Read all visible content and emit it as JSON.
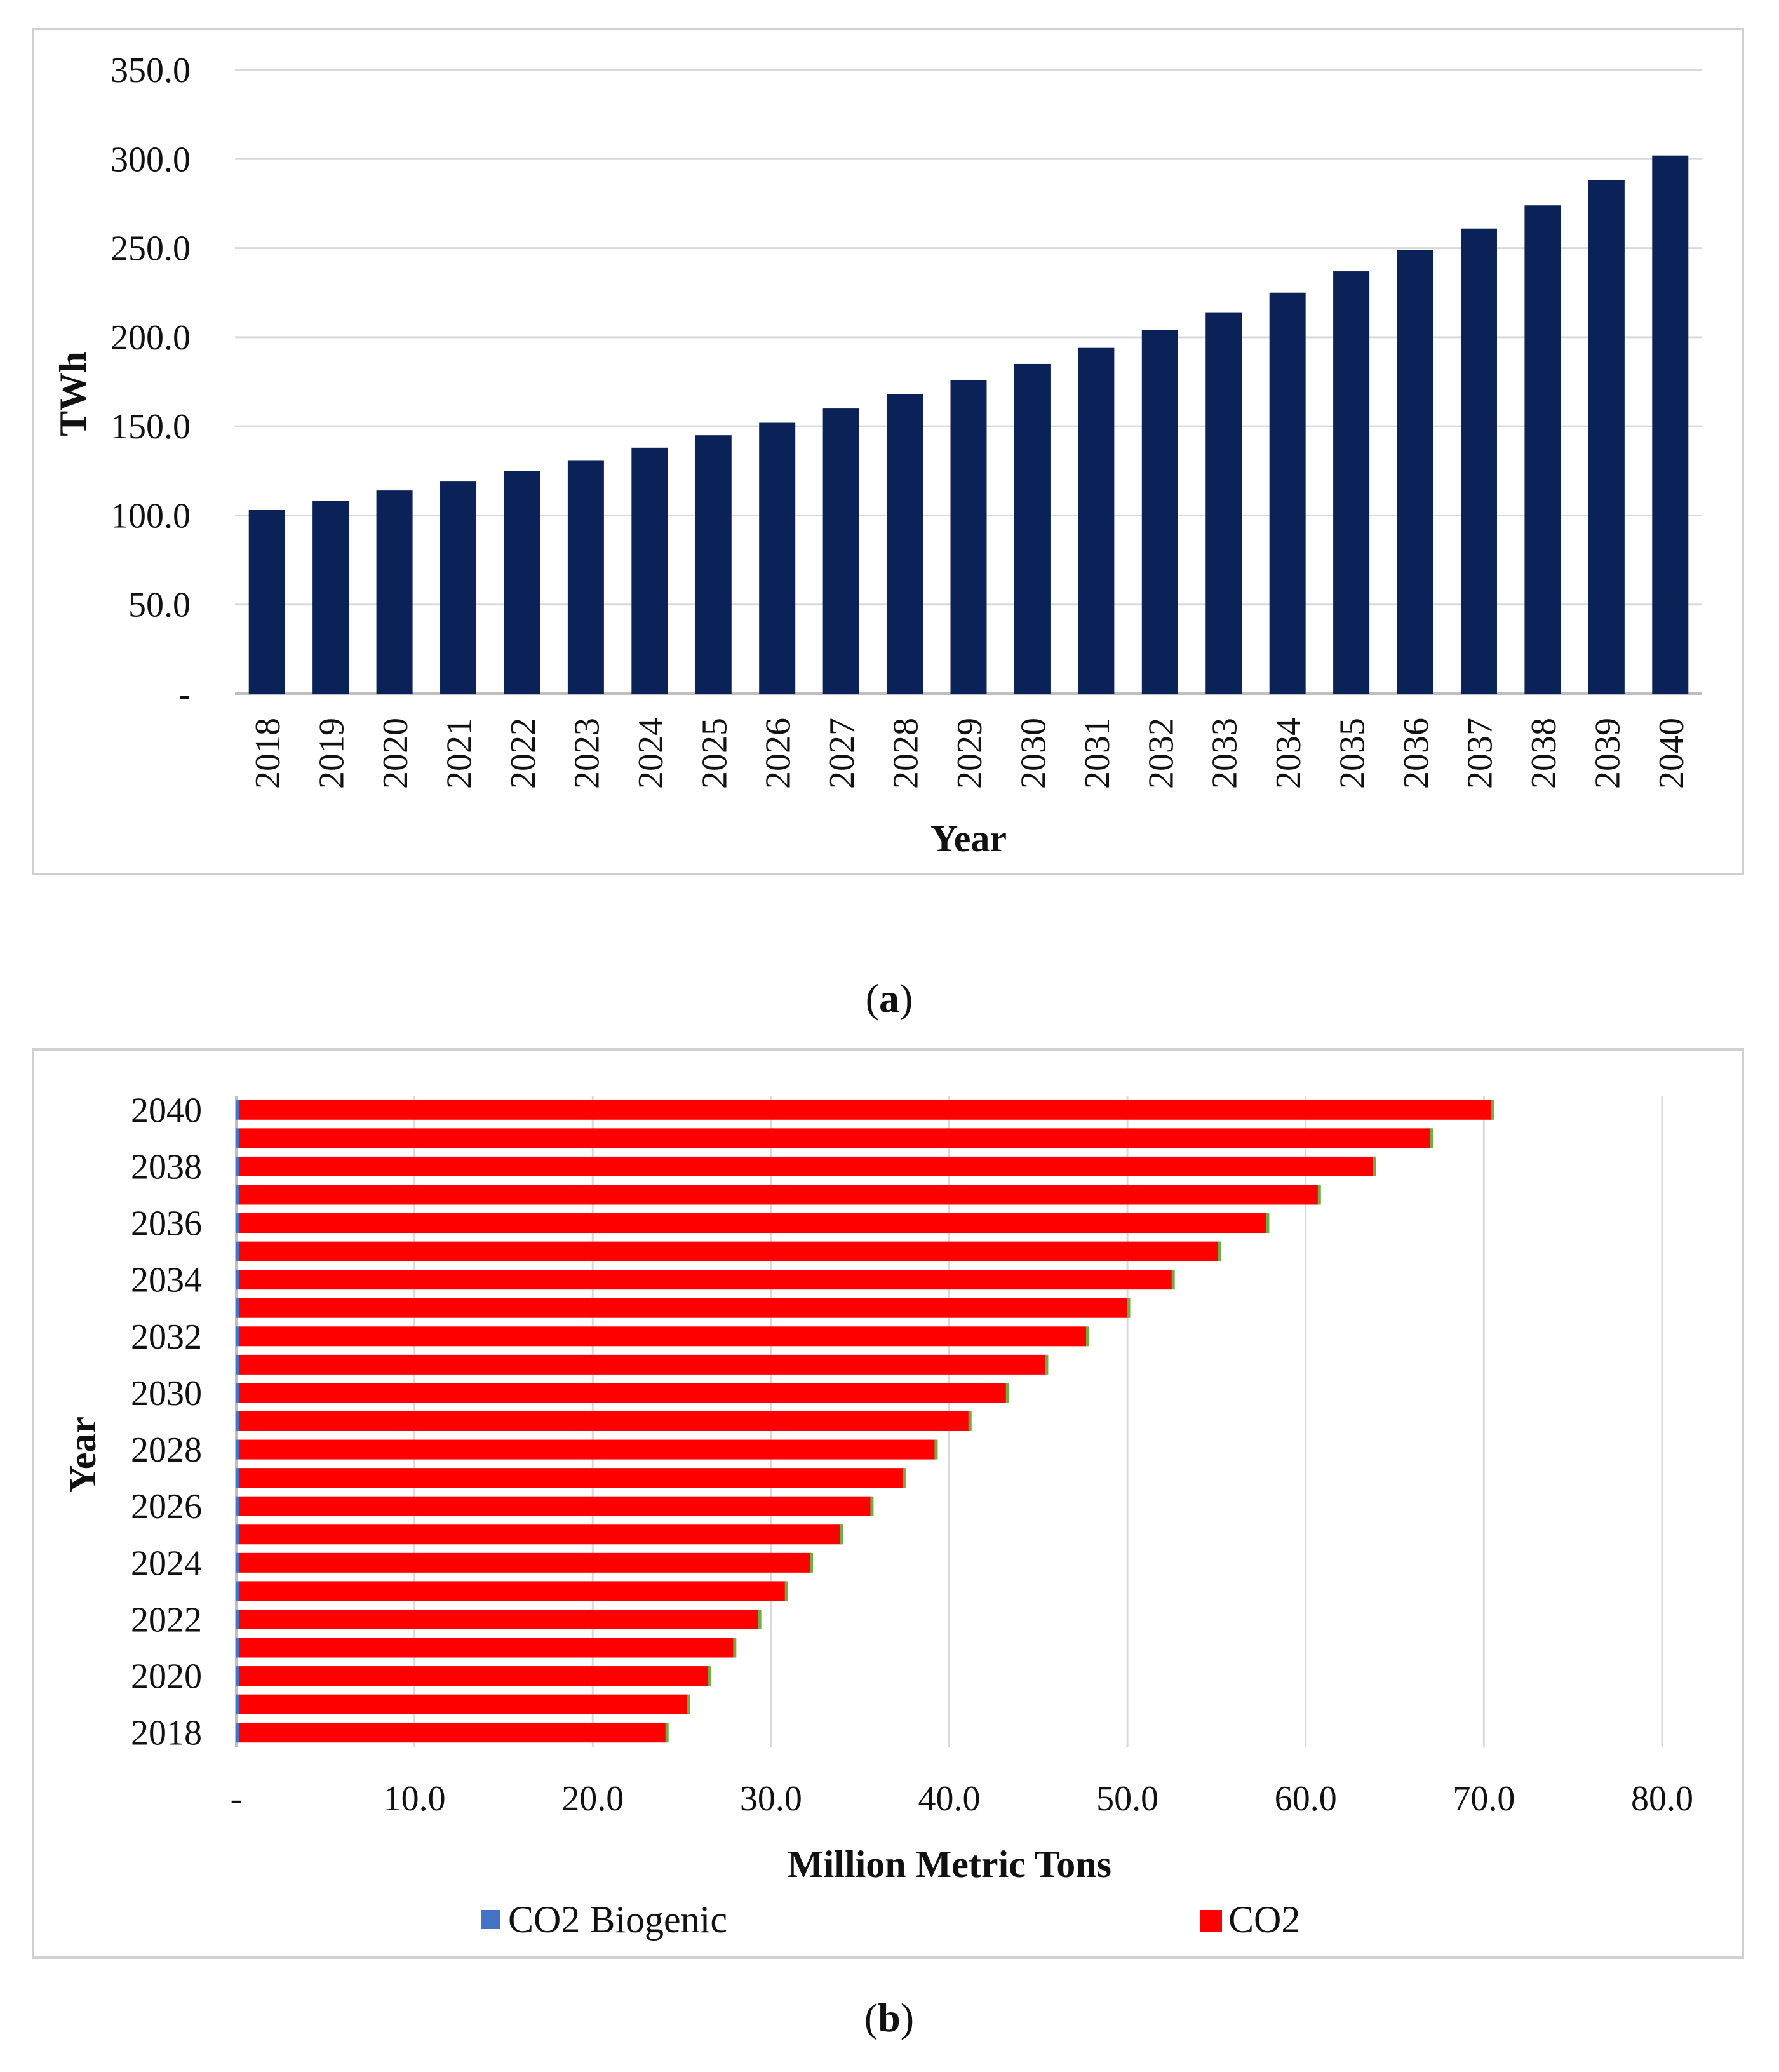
{
  "chart_data": [
    {
      "type": "bar",
      "orientation": "vertical",
      "panel_label": "a",
      "title": "",
      "xlabel": "Year",
      "ylabel": "TWh",
      "ylim": [
        0,
        350
      ],
      "yticks": [
        0,
        50,
        100,
        150,
        200,
        250,
        300,
        350
      ],
      "ytick_labels": [
        "-",
        "50.0",
        "100.0",
        "150.0",
        "200.0",
        "250.0",
        "300.0",
        "350.0"
      ],
      "grid": true,
      "color": "#0b2258",
      "categories": [
        "2018",
        "2019",
        "2020",
        "2021",
        "2022",
        "2023",
        "2024",
        "2025",
        "2026",
        "2027",
        "2028",
        "2029",
        "2030",
        "2031",
        "2032",
        "2033",
        "2034",
        "2035",
        "2036",
        "2037",
        "2038",
        "2039",
        "2040"
      ],
      "values": [
        103,
        108,
        114,
        119,
        125,
        131,
        138,
        145,
        152,
        160,
        168,
        176,
        185,
        194,
        204,
        214,
        225,
        237,
        249,
        261,
        274,
        288,
        302
      ]
    },
    {
      "type": "bar",
      "orientation": "horizontal",
      "stacked": true,
      "panel_label": "b",
      "title": "",
      "xlabel": "Million Metric Tons",
      "ylabel": "Year",
      "xlim": [
        0,
        80
      ],
      "xticks": [
        0,
        10,
        20,
        30,
        40,
        50,
        60,
        70,
        80
      ],
      "xtick_labels": [
        "-",
        "10.0",
        "20.0",
        "30.0",
        "40.0",
        "50.0",
        "60.0",
        "70.0",
        "80.0"
      ],
      "grid": true,
      "categories": [
        "2018",
        "2019",
        "2020",
        "2021",
        "2022",
        "2023",
        "2024",
        "2025",
        "2026",
        "2027",
        "2028",
        "2029",
        "2030",
        "2031",
        "2032",
        "2033",
        "2034",
        "2035",
        "2036",
        "2037",
        "2038",
        "2039",
        "2040"
      ],
      "ytick_labels_shown": [
        "2018",
        "2020",
        "2022",
        "2024",
        "2026",
        "2028",
        "2030",
        "2032",
        "2034",
        "2036",
        "2038",
        "2040"
      ],
      "legend_position": "bottom",
      "series": [
        {
          "name": "CO2 Biogenic",
          "color": "#4472c4",
          "values": [
            0.15,
            0.15,
            0.15,
            0.15,
            0.15,
            0.15,
            0.15,
            0.15,
            0.15,
            0.15,
            0.15,
            0.15,
            0.15,
            0.15,
            0.15,
            0.15,
            0.15,
            0.15,
            0.15,
            0.15,
            0.15,
            0.15,
            0.15
          ]
        },
        {
          "name": "CO2",
          "color": "#ff0000",
          "values": [
            24.0,
            25.2,
            26.4,
            27.8,
            29.2,
            30.7,
            32.1,
            33.8,
            35.5,
            37.3,
            39.1,
            41.0,
            43.1,
            45.3,
            47.6,
            49.9,
            52.4,
            55.0,
            57.7,
            60.6,
            63.7,
            66.9,
            70.3
          ]
        }
      ],
      "cap_color": "#70ad47"
    }
  ],
  "captions": {
    "a": "a",
    "b": "b"
  }
}
